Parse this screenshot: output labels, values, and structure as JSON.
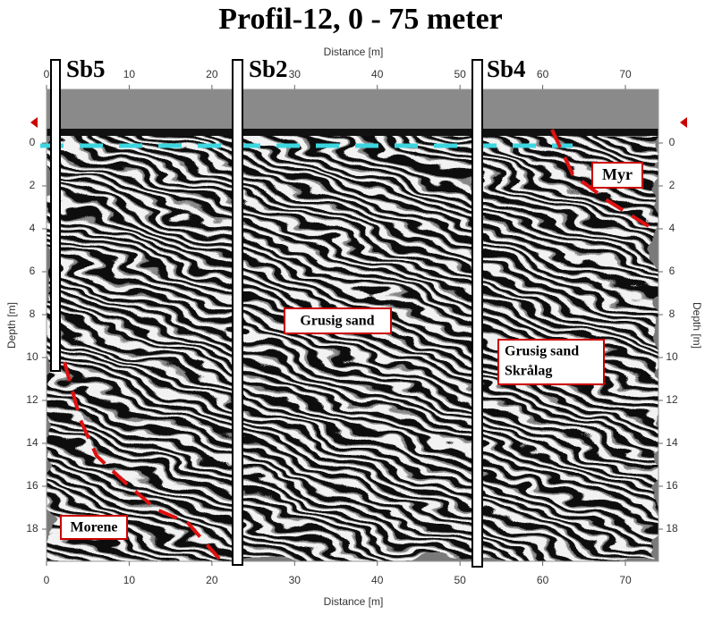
{
  "chart_data": {
    "type": "radargram",
    "title": "Profil-12, 0 - 75 meter",
    "xlabel": "Distance [m]",
    "ylabel": "Depth [m]",
    "xlim": [
      0,
      74
    ],
    "xticks": [
      0,
      10,
      20,
      30,
      40,
      50,
      60,
      70
    ],
    "ylim": [
      19.5,
      -2.5
    ],
    "yticks": [
      0,
      2,
      4,
      6,
      8,
      10,
      12,
      14,
      16,
      18
    ],
    "boreholes": [
      "Sb5",
      "Sb2",
      "Sb4"
    ],
    "annotations": [
      "Grusig sand",
      "Grusig sand",
      "Skrålag",
      "Myr",
      "Morene"
    ]
  }
}
